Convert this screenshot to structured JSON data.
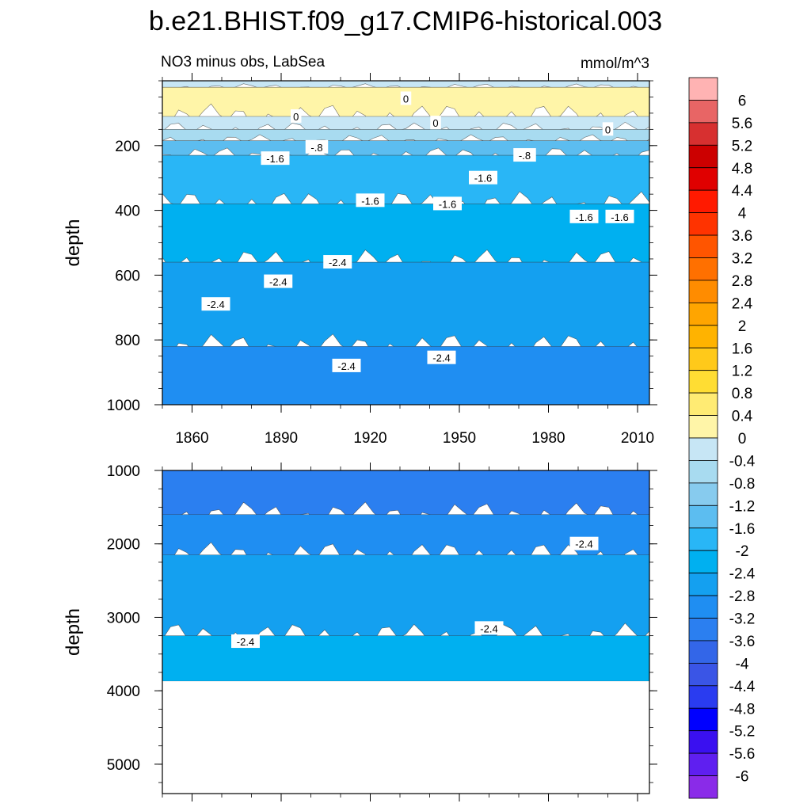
{
  "chart_data": {
    "type": "contour",
    "title": "b.e21.BHIST.f09_g17.CMIP6-historical.003",
    "subtitle_left": "NO3 minus obs, LabSea",
    "units": "mmol/m^3",
    "x_ticks": [
      "1860",
      "1890",
      "1920",
      "1950",
      "1980",
      "2010"
    ],
    "x_tick_values": [
      1860,
      1890,
      1920,
      1950,
      1980,
      2010
    ],
    "xlim": [
      1850,
      2014
    ],
    "panels": [
      {
        "name": "upper",
        "ylabel": "depth",
        "ylim": [
          0,
          1000
        ],
        "y_ticks": [
          "200",
          "400",
          "600",
          "800",
          "1000"
        ],
        "y_tick_values": [
          200,
          400,
          600,
          800,
          1000
        ],
        "bands": [
          {
            "top": 0,
            "bottom": 20,
            "value": -0.2
          },
          {
            "top": 20,
            "bottom": 110,
            "value": 0.4
          },
          {
            "top": 110,
            "bottom": 150,
            "value": -0.2
          },
          {
            "top": 150,
            "bottom": 185,
            "value": -0.6
          },
          {
            "top": 185,
            "bottom": 230,
            "value": -1.4
          },
          {
            "top": 230,
            "bottom": 380,
            "value": -1.8
          },
          {
            "top": 380,
            "bottom": 560,
            "value": -2.2
          },
          {
            "top": 560,
            "bottom": 820,
            "value": -2.6
          },
          {
            "top": 820,
            "bottom": 1000,
            "value": -3.0
          }
        ],
        "contour_labels": [
          {
            "text": "0",
            "x": 1895,
            "y": 110
          },
          {
            "text": "0",
            "x": 1932,
            "y": 55
          },
          {
            "text": "0",
            "x": 1942,
            "y": 130
          },
          {
            "text": "0",
            "x": 2000,
            "y": 150
          },
          {
            "text": "-1.6",
            "x": 1888,
            "y": 240
          },
          {
            "text": "-.8",
            "x": 1902,
            "y": 205
          },
          {
            "text": "-1.6",
            "x": 1920,
            "y": 370
          },
          {
            "text": "-1.6",
            "x": 1946,
            "y": 380
          },
          {
            "text": "-1.6",
            "x": 1958,
            "y": 300
          },
          {
            "text": "-.8",
            "x": 1972,
            "y": 230
          },
          {
            "text": "-1.6",
            "x": 1992,
            "y": 420
          },
          {
            "text": "-1.6",
            "x": 2004,
            "y": 420
          },
          {
            "text": "-2.4",
            "x": 1909,
            "y": 560
          },
          {
            "text": "-2.4",
            "x": 1889,
            "y": 620
          },
          {
            "text": "-2.4",
            "x": 1868,
            "y": 690
          },
          {
            "text": "-2.4",
            "x": 1912,
            "y": 880
          },
          {
            "text": "-2.4",
            "x": 1944,
            "y": 855
          }
        ]
      },
      {
        "name": "lower",
        "ylabel": "depth",
        "ylim": [
          1000,
          5400
        ],
        "data_bottom": 3870,
        "y_ticks": [
          "1000",
          "2000",
          "3000",
          "4000",
          "5000"
        ],
        "y_tick_values": [
          1000,
          2000,
          3000,
          4000,
          5000
        ],
        "bands": [
          {
            "top": 1000,
            "bottom": 1600,
            "value": -3.4
          },
          {
            "top": 1600,
            "bottom": 2150,
            "value": -3.0
          },
          {
            "top": 2150,
            "bottom": 3250,
            "value": -2.6
          },
          {
            "top": 3250,
            "bottom": 3870,
            "value": -2.2
          }
        ],
        "contour_labels": [
          {
            "text": "-2.4",
            "x": 1992,
            "y": 2000
          },
          {
            "text": "-2.4",
            "x": 1960,
            "y": 3150
          },
          {
            "text": "-2.4",
            "x": 1878,
            "y": 3330
          }
        ]
      }
    ],
    "colorbar": {
      "labels": [
        "6",
        "5.6",
        "5.2",
        "4.8",
        "4.4",
        "4",
        "3.6",
        "3.2",
        "2.8",
        "2.4",
        "2",
        "1.6",
        "1.2",
        "0.8",
        "0.4",
        "0",
        "-0.4",
        "-0.8",
        "-1.2",
        "-1.6",
        "-2",
        "-2.4",
        "-2.8",
        "-3.2",
        "-3.6",
        "-4",
        "-4.4",
        "-4.8",
        "-5.2",
        "-5.6",
        "-6"
      ],
      "colors": [
        "#ffb3b3",
        "#e86565",
        "#d73030",
        "#cc0000",
        "#e00000",
        "#ff1a00",
        "#ff3300",
        "#ff5500",
        "#ff7000",
        "#ff8c00",
        "#ffa500",
        "#ffb300",
        "#ffc91a",
        "#ffdd33",
        "#ffeb73",
        "#fff5a8",
        "#c7e6f5",
        "#a8dbf0",
        "#87cbee",
        "#5cbdf0",
        "#29b6f6",
        "#00b0f0",
        "#14a0f0",
        "#1f8ef2",
        "#2b7ff0",
        "#3366e8",
        "#3a55e6",
        "#2a3cf0",
        "#0000ff",
        "#3a10f0",
        "#5f1ff0",
        "#8a2be8"
      ]
    }
  }
}
